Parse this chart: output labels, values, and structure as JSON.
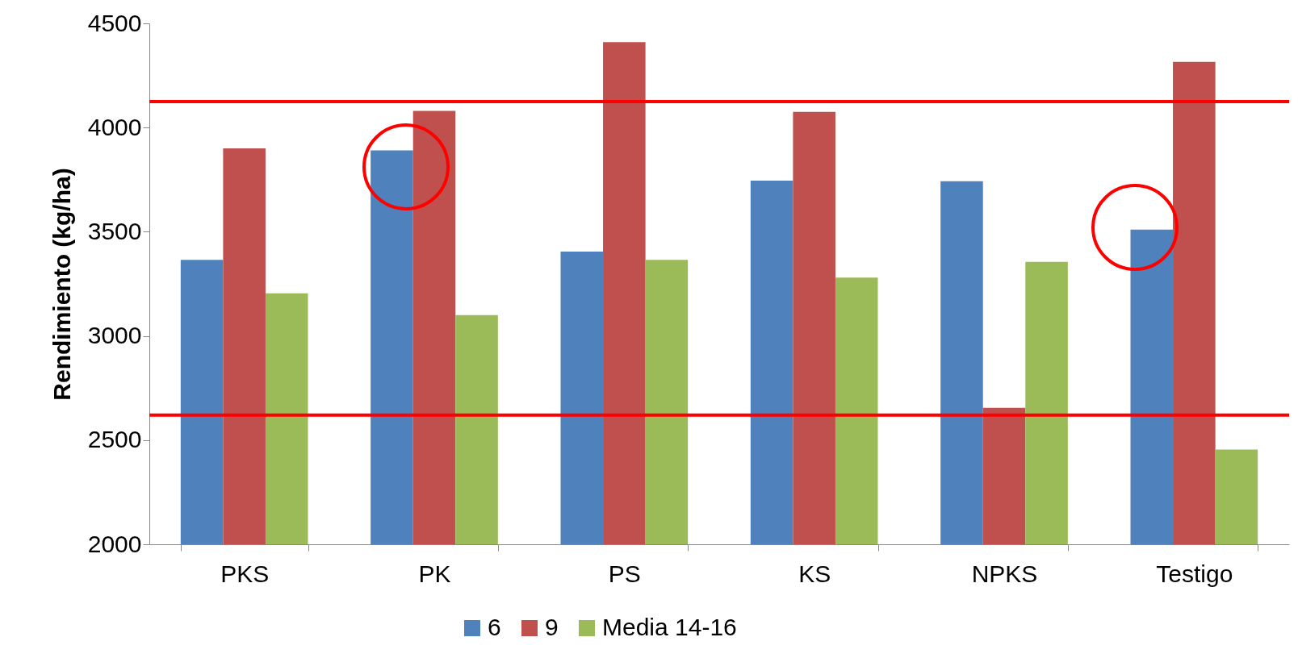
{
  "chart_data": {
    "type": "bar",
    "ylabel": "Rendimiento (kg/ha)",
    "categories": [
      "PKS",
      "PK",
      "PS",
      "KS",
      "NPKS",
      "Testigo"
    ],
    "series": [
      {
        "name": "6",
        "color": "#4f81bd",
        "values": [
          3365,
          3890,
          3405,
          3745,
          3742,
          3510
        ]
      },
      {
        "name": "9",
        "color": "#c0504d",
        "values": [
          3900,
          4080,
          4410,
          4075,
          2655,
          4315
        ]
      },
      {
        "name": "Media 14-16",
        "color": "#9bbb59",
        "values": [
          3205,
          3100,
          3365,
          3280,
          3355,
          2455
        ]
      }
    ],
    "ylim": [
      2000,
      4500
    ],
    "yticks": [
      2000,
      2500,
      3000,
      3500,
      4000,
      4500
    ],
    "ref_lines": [
      {
        "axis": "y",
        "value": 4125,
        "color": "#ff0000"
      },
      {
        "axis": "y",
        "value": 2620,
        "color": "#ff0000"
      }
    ],
    "legend": "bottom"
  }
}
